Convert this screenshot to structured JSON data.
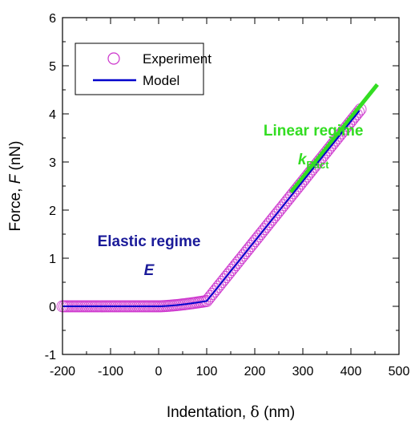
{
  "chart_data": {
    "type": "scatter",
    "title": "",
    "xlabel": {
      "prefix": "Indentation, ",
      "symbol": "δ",
      "suffix": " (nm)"
    },
    "ylabel": {
      "prefix": "Force, ",
      "symbol": "F",
      "suffix": " (nN)"
    },
    "xlim": [
      -200,
      500
    ],
    "ylim": [
      -1,
      6
    ],
    "xticks": [
      -200,
      -100,
      0,
      100,
      200,
      300,
      400,
      500
    ],
    "yticks": [
      -1,
      0,
      1,
      2,
      3,
      4,
      5,
      6
    ],
    "x_minor_step": 50,
    "y_minor_step": 0.5,
    "grid": false,
    "legend": {
      "position": "top-left",
      "entries": [
        {
          "label": "Experiment",
          "marker": "open-circle",
          "color": "#cc33cc"
        },
        {
          "label": "Model",
          "marker": "line",
          "color": "#0000cc"
        }
      ]
    },
    "series": [
      {
        "name": "Experiment",
        "kind": "scatter",
        "color": "#cc33cc",
        "x_range": [
          -200,
          420
        ],
        "x_step": 4,
        "curve": {
          "contact_point": 0,
          "transition": 100,
          "elastic_coefficient": 0.00011,
          "elastic_exponent": 1.5,
          "linear_slope": 0.01245
        }
      },
      {
        "name": "Model",
        "kind": "line",
        "color": "#0000cc",
        "x_range": [
          -200,
          418
        ],
        "curve": {
          "contact_point": 0,
          "transition": 100,
          "elastic_coefficient": 0.00011,
          "elastic_exponent": 1.5,
          "linear_slope": 0.01245
        }
      },
      {
        "kind": "line",
        "color": "#33dd22",
        "x": [
          275,
          455
        ],
        "y": [
          2.37,
          4.61
        ]
      }
    ],
    "annotations": [
      {
        "id": "linear",
        "text": "Linear regime",
        "color": "#33dd22",
        "x": 322,
        "y": 3.55
      },
      {
        "id": "kbact",
        "text": "k",
        "sub": "Bact",
        "color": "#33dd22",
        "x": 322,
        "y": 2.95
      },
      {
        "id": "elastic",
        "text": "Elastic regime",
        "color": "#1a1a99",
        "x": -20,
        "y": 1.25
      },
      {
        "id": "e",
        "text": "E",
        "color": "#1a1a99",
        "x": -20,
        "y": 0.65
      }
    ]
  }
}
